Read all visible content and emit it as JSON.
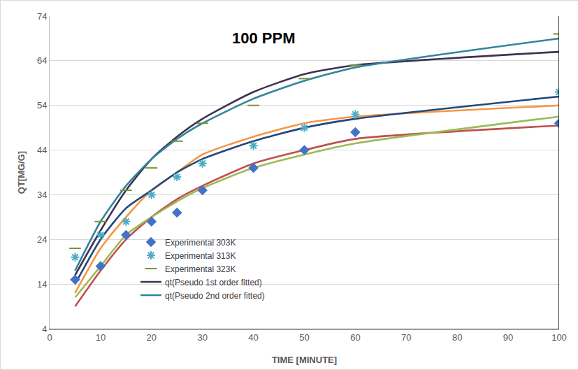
{
  "chart_data": {
    "type": "line",
    "title": "100 PPM",
    "x_label": "TIME [MINUTE]",
    "y_label": "QT[MG/G]",
    "x": [
      5,
      10,
      15,
      20,
      25,
      30,
      40,
      50,
      60,
      100
    ],
    "xlim": [
      0,
      100
    ],
    "xticks": [
      0,
      10,
      20,
      30,
      40,
      50,
      60,
      70,
      80,
      90,
      100
    ],
    "ylim": [
      4,
      74
    ],
    "yticks": [
      4,
      14,
      24,
      34,
      44,
      54,
      64,
      74
    ],
    "grid": true,
    "legend": "bottom",
    "series": [
      {
        "name": "Experimental 303K",
        "type": "scatter",
        "marker": "diamond",
        "color": "#4472c4",
        "values": [
          15,
          18,
          25,
          28,
          30,
          35,
          40,
          44,
          48,
          50
        ]
      },
      {
        "name": "Experimental 313K",
        "type": "scatter",
        "marker": "asterisk",
        "color": "#4bacc6",
        "values": [
          20,
          25,
          28,
          34,
          38,
          41,
          45,
          49,
          52,
          57
        ]
      },
      {
        "name": "Experimental 323K",
        "type": "scatter",
        "marker": "dash",
        "color": "#77933c",
        "values": [
          22,
          28,
          35,
          40,
          46,
          50,
          54,
          60,
          63,
          70
        ]
      },
      {
        "name": "qt(Pseudo 1st order fitted)",
        "type": "line",
        "line_style": "solid",
        "color": "#403151",
        "values": [
          16,
          26,
          35,
          42,
          47,
          51,
          57,
          61,
          63,
          66
        ]
      },
      {
        "name": "qt(Pseudo 2nd order fitted)",
        "type": "line",
        "line_style": "solid",
        "color": "#31859c",
        "values": [
          17,
          28,
          36,
          42,
          46.5,
          50,
          55.5,
          59.5,
          62.5,
          69
        ]
      },
      {
        "type": "line",
        "line_style": "solid",
        "color": "#f79646",
        "values": [
          12,
          22,
          29,
          35,
          39,
          43,
          47,
          50,
          51.5,
          54
        ]
      },
      {
        "type": "line",
        "line_style": "solid",
        "color": "#1f497d",
        "values": [
          14,
          24,
          31,
          35,
          39,
          42,
          46,
          49,
          51,
          56
        ]
      },
      {
        "type": "line",
        "line_style": "solid",
        "color": "#c0504d",
        "values": [
          9,
          17,
          24,
          29,
          33,
          36,
          41,
          44,
          46.5,
          49.5
        ]
      },
      {
        "type": "line",
        "line_style": "solid",
        "color": "#9bbb59",
        "values": [
          11,
          18,
          25,
          29,
          32.5,
          35.5,
          40,
          43,
          45.5,
          51.5
        ]
      }
    ]
  }
}
